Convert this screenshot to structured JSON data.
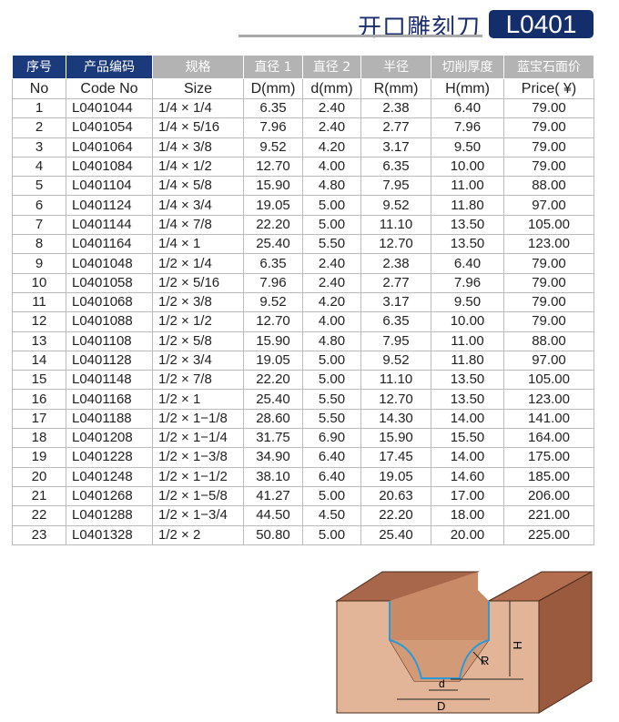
{
  "header": {
    "title": "开口雕刻刀",
    "badge": "L0401"
  },
  "table": {
    "headers_cn": [
      "序号",
      "产品编码",
      "规格",
      "直径 1",
      "直径 2",
      "半径",
      "切削厚度",
      "蓝宝石面价"
    ],
    "headers_en": [
      "No",
      "Code No",
      "Size",
      "D(mm)",
      "d(mm)",
      "R(mm)",
      "H(mm)",
      "Price( ¥)"
    ],
    "rows": [
      [
        "1",
        "L0401044",
        "1/4 × 1/4",
        "6.35",
        "2.40",
        "2.38",
        "6.40",
        "79.00"
      ],
      [
        "2",
        "L0401054",
        "1/4 × 5/16",
        "7.96",
        "2.40",
        "2.77",
        "7.96",
        "79.00"
      ],
      [
        "3",
        "L0401064",
        "1/4 × 3/8",
        "9.52",
        "4.20",
        "3.17",
        "9.50",
        "79.00"
      ],
      [
        "4",
        "L0401084",
        "1/4 × 1/2",
        "12.70",
        "4.00",
        "6.35",
        "10.00",
        "79.00"
      ],
      [
        "5",
        "L0401104",
        "1/4 × 5/8",
        "15.90",
        "4.80",
        "7.95",
        "11.00",
        "88.00"
      ],
      [
        "6",
        "L0401124",
        "1/4 × 3/4",
        "19.05",
        "5.00",
        "9.52",
        "11.80",
        "97.00"
      ],
      [
        "7",
        "L0401144",
        "1/4 × 7/8",
        "22.20",
        "5.00",
        "11.10",
        "13.50",
        "105.00"
      ],
      [
        "8",
        "L0401164",
        "1/4 × 1",
        "25.40",
        "5.50",
        "12.70",
        "13.50",
        "123.00"
      ],
      [
        "9",
        "L0401048",
        "1/2 × 1/4",
        "6.35",
        "2.40",
        "2.38",
        "6.40",
        "79.00"
      ],
      [
        "10",
        "L0401058",
        "1/2 × 5/16",
        "7.96",
        "2.40",
        "2.77",
        "7.96",
        "79.00"
      ],
      [
        "11",
        "L0401068",
        "1/2 × 3/8",
        "9.52",
        "4.20",
        "3.17",
        "9.50",
        "79.00"
      ],
      [
        "12",
        "L0401088",
        "1/2 × 1/2",
        "12.70",
        "4.00",
        "6.35",
        "10.00",
        "79.00"
      ],
      [
        "13",
        "L0401108",
        "1/2 × 5/8",
        "15.90",
        "4.80",
        "7.95",
        "11.00",
        "88.00"
      ],
      [
        "14",
        "L0401128",
        "1/2 × 3/4",
        "19.05",
        "5.00",
        "9.52",
        "11.80",
        "97.00"
      ],
      [
        "15",
        "L0401148",
        "1/2 × 7/8",
        "22.20",
        "5.00",
        "11.10",
        "13.50",
        "105.00"
      ],
      [
        "16",
        "L0401168",
        "1/2 × 1",
        "25.40",
        "5.50",
        "12.70",
        "13.50",
        "123.00"
      ],
      [
        "17",
        "L0401188",
        "1/2 × 1−1/8",
        "28.60",
        "5.50",
        "14.30",
        "14.00",
        "141.00"
      ],
      [
        "18",
        "L0401208",
        "1/2 × 1−1/4",
        "31.75",
        "6.90",
        "15.90",
        "15.50",
        "164.00"
      ],
      [
        "19",
        "L0401228",
        "1/2 × 1−3/8",
        "34.90",
        "6.40",
        "17.45",
        "14.00",
        "175.00"
      ],
      [
        "20",
        "L0401248",
        "1/2 × 1−1/2",
        "38.10",
        "6.40",
        "19.05",
        "14.60",
        "185.00"
      ],
      [
        "21",
        "L0401268",
        "1/2 × 1−5/8",
        "41.27",
        "5.00",
        "20.63",
        "17.00",
        "206.00"
      ],
      [
        "22",
        "L0401288",
        "1/2 × 1−3/4",
        "44.50",
        "4.50",
        "22.20",
        "18.00",
        "221.00"
      ],
      [
        "23",
        "L0401328",
        "1/2 × 2",
        "50.80",
        "5.00",
        "25.40",
        "20.00",
        "225.00"
      ]
    ]
  },
  "diagram": {
    "labels": {
      "H": "H",
      "R": "R",
      "d": "d",
      "D": "D"
    }
  }
}
